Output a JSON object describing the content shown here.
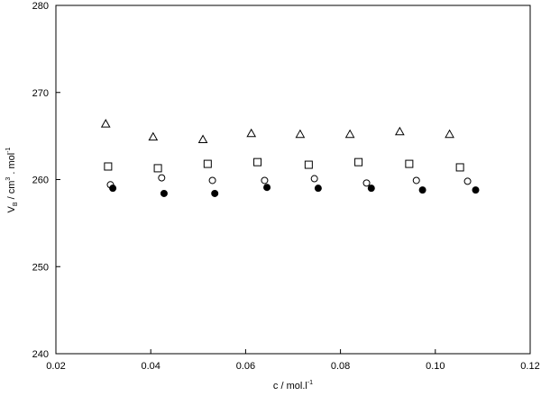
{
  "chart_data": {
    "type": "scatter",
    "title": "",
    "xlabel": "c / mol.l",
    "xlabel_sup": "-1",
    "ylabel_main": "V",
    "ylabel_sub": "B",
    "ylabel_mid": " / cm",
    "ylabel_sup1": "3",
    "ylabel_mid2": " . mol",
    "ylabel_sup2": "-1",
    "xlim": [
      0.02,
      0.12
    ],
    "ylim": [
      240,
      280
    ],
    "xticks": [
      0.02,
      0.04,
      0.06,
      0.08,
      0.1,
      0.12
    ],
    "xtick_labels": [
      "0.02",
      "0.04",
      "0.06",
      "0.08",
      "0.10",
      "0.12"
    ],
    "yticks": [
      240,
      250,
      260,
      270,
      280
    ],
    "ytick_labels": [
      "240",
      "250",
      "260",
      "270",
      "280"
    ],
    "grid": false,
    "series": [
      {
        "marker": "triangle-open",
        "x": [
          0.0305,
          0.0405,
          0.051,
          0.0612,
          0.0715,
          0.082,
          0.0925,
          0.103
        ],
        "y": [
          266.4,
          264.9,
          264.6,
          265.3,
          265.2,
          265.2,
          265.5,
          265.2
        ]
      },
      {
        "marker": "square-open",
        "x": [
          0.031,
          0.0415,
          0.052,
          0.0625,
          0.0733,
          0.0838,
          0.0945,
          0.1052
        ],
        "y": [
          261.5,
          261.3,
          261.8,
          262.0,
          261.7,
          262.0,
          261.8,
          261.4
        ]
      },
      {
        "marker": "circle-open",
        "x": [
          0.0315,
          0.0423,
          0.053,
          0.064,
          0.0745,
          0.0855,
          0.096,
          0.1068
        ],
        "y": [
          259.4,
          260.2,
          259.9,
          259.9,
          260.1,
          259.6,
          259.9,
          259.8
        ]
      },
      {
        "marker": "circle-filled",
        "x": [
          0.032,
          0.0428,
          0.0535,
          0.0645,
          0.0753,
          0.0865,
          0.0973,
          0.1085
        ],
        "y": [
          259.0,
          258.4,
          258.4,
          259.1,
          259.0,
          259.0,
          258.8,
          258.8
        ]
      }
    ]
  }
}
